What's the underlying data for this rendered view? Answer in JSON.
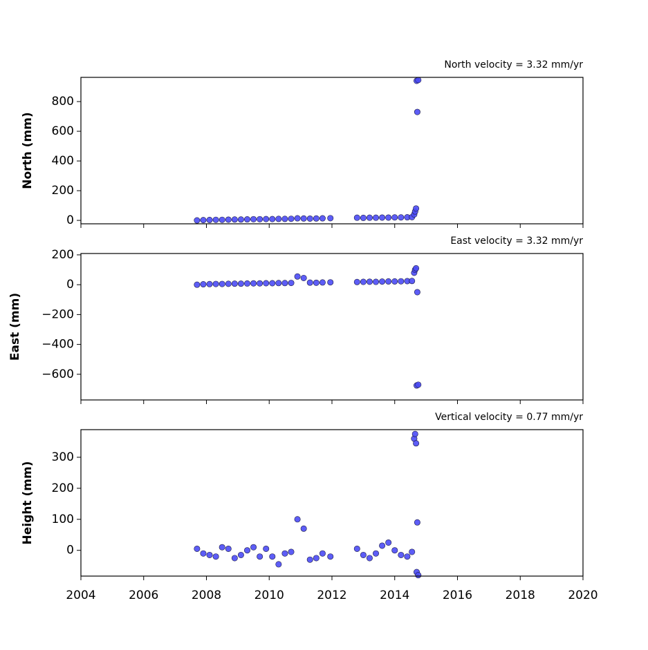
{
  "chart_data": [
    {
      "type": "scatter",
      "title": "North velocity = 3.32 mm/yr",
      "ylabel": "North (mm)",
      "color": "#4b4bf5",
      "x": [
        2007.7,
        2007.9,
        2008.1,
        2008.3,
        2008.5,
        2008.7,
        2008.9,
        2009.1,
        2009.3,
        2009.5,
        2009.7,
        2009.9,
        2010.1,
        2010.3,
        2010.5,
        2010.7,
        2010.9,
        2011.1,
        2011.3,
        2011.5,
        2011.7,
        2011.95,
        2012.8,
        2013.0,
        2013.2,
        2013.4,
        2013.6,
        2013.8,
        2014.0,
        2014.2,
        2014.4,
        2014.55,
        2014.62,
        2014.65,
        2014.68,
        2014.72,
        2014.7,
        2014.75
      ],
      "values": [
        0,
        2,
        3,
        4,
        4,
        5,
        6,
        6,
        7,
        8,
        8,
        9,
        9,
        10,
        10,
        11,
        14,
        13,
        12,
        13,
        14,
        15,
        18,
        17,
        18,
        18,
        19,
        19,
        20,
        20,
        21,
        22,
        40,
        60,
        80,
        730,
        940,
        945
      ],
      "xlim": [
        2004,
        2020
      ],
      "ylim": [
        -23,
        963
      ],
      "yticks": [
        0,
        200,
        400,
        600,
        800
      ]
    },
    {
      "type": "scatter",
      "title": "East velocity = 3.32 mm/yr",
      "ylabel": "East (mm)",
      "color": "#4b4bf5",
      "x": [
        2007.7,
        2007.9,
        2008.1,
        2008.3,
        2008.5,
        2008.7,
        2008.9,
        2009.1,
        2009.3,
        2009.5,
        2009.7,
        2009.9,
        2010.1,
        2010.3,
        2010.5,
        2010.7,
        2010.9,
        2011.1,
        2011.3,
        2011.5,
        2011.7,
        2011.95,
        2012.8,
        2013.0,
        2013.2,
        2013.4,
        2013.6,
        2013.8,
        2014.0,
        2014.2,
        2014.4,
        2014.55,
        2014.62,
        2014.65,
        2014.68,
        2014.72,
        2014.7,
        2014.75
      ],
      "values": [
        0,
        3,
        4,
        5,
        5,
        6,
        7,
        7,
        8,
        9,
        9,
        10,
        10,
        11,
        11,
        12,
        55,
        45,
        14,
        13,
        15,
        16,
        18,
        19,
        20,
        19,
        21,
        22,
        22,
        23,
        24,
        25,
        80,
        100,
        110,
        -50,
        -675,
        -670
      ],
      "xlim": [
        2004,
        2020
      ],
      "ylim": [
        -772,
        209
      ],
      "yticks": [
        {
          "value": -600,
          "label": "−600"
        },
        {
          "value": -400,
          "label": "−400"
        },
        {
          "value": -200,
          "label": "−200"
        },
        0,
        200
      ]
    },
    {
      "type": "scatter",
      "title": "Vertical velocity = 0.77 mm/yr",
      "ylabel": "Height (mm)",
      "color": "#4b4bf5",
      "x": [
        2007.7,
        2007.9,
        2008.1,
        2008.3,
        2008.5,
        2008.7,
        2008.9,
        2009.1,
        2009.3,
        2009.5,
        2009.7,
        2009.9,
        2010.1,
        2010.3,
        2010.5,
        2010.7,
        2010.9,
        2011.1,
        2011.3,
        2011.5,
        2011.7,
        2011.95,
        2012.8,
        2013.0,
        2013.2,
        2013.4,
        2013.6,
        2013.8,
        2014.0,
        2014.2,
        2014.4,
        2014.55,
        2014.62,
        2014.65,
        2014.68,
        2014.72,
        2014.7,
        2014.75
      ],
      "values": [
        5,
        -10,
        -15,
        -20,
        10,
        5,
        -25,
        -15,
        0,
        10,
        -20,
        5,
        -20,
        -45,
        -10,
        -5,
        100,
        70,
        -30,
        -25,
        -10,
        -20,
        5,
        -15,
        -25,
        -10,
        15,
        25,
        0,
        -15,
        -20,
        -5,
        360,
        375,
        345,
        90,
        -70,
        -80
      ],
      "xlim": [
        2004,
        2020
      ],
      "ylim": [
        -83,
        389
      ],
      "yticks": [
        0,
        100,
        200,
        300
      ],
      "xticks": [
        2004,
        2006,
        2008,
        2010,
        2012,
        2014,
        2016,
        2018,
        2020
      ]
    }
  ]
}
